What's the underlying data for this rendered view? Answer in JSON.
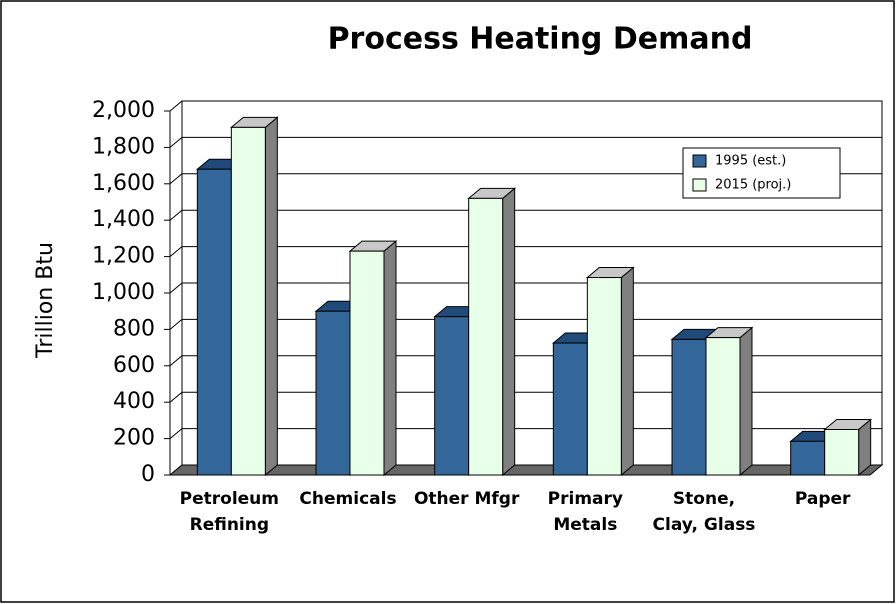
{
  "chart_data": {
    "type": "bar3d",
    "title": "Process Heating Demand",
    "y_label": "Trillion Btu",
    "categories": [
      "Petroleum Refining",
      "Chemicals",
      "Other Mfgr",
      "Primary Metals",
      "Stone, Clay, Glass",
      "Paper"
    ],
    "series": [
      {
        "name": "1995 (est.)",
        "color": "#336699",
        "values": [
          1680,
          900,
          870,
          725,
          745,
          185
        ]
      },
      {
        "name": "2015 (proj.)",
        "color": "#e8ffe8",
        "values": [
          1910,
          1230,
          1520,
          1085,
          755,
          250
        ]
      }
    ],
    "ylim": [
      0,
      2000
    ],
    "yticks": [
      0,
      200,
      400,
      600,
      800,
      {
        "value": 1000,
        "label": "1,000"
      },
      {
        "value": 1200,
        "label": "1,200"
      },
      {
        "value": 1400,
        "label": "1,400"
      },
      {
        "value": 1600,
        "label": "1,600"
      },
      {
        "value": 1800,
        "label": "1,800"
      },
      {
        "value": 2000,
        "label": "2,000"
      }
    ],
    "grid": true,
    "legend": "upper right"
  }
}
